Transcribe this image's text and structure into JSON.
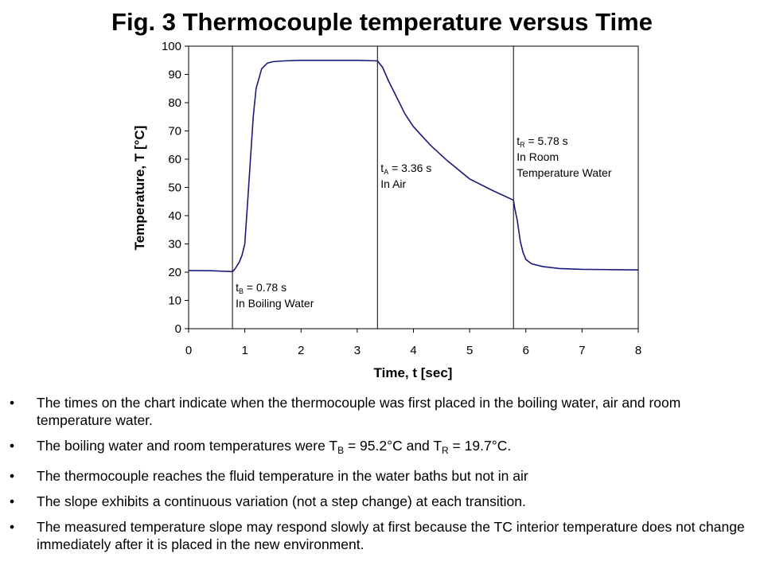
{
  "chart_data": {
    "type": "line",
    "title": "Fig. 3 Thermocouple temperature  versus Time",
    "xlabel": "Time, t [sec]",
    "ylabel": "Temperature, T [°C]",
    "xlim": [
      0,
      8
    ],
    "ylim": [
      0,
      100
    ],
    "xticks": [
      0,
      1,
      2,
      3,
      4,
      5,
      6,
      7,
      8
    ],
    "yticks": [
      0,
      10,
      20,
      30,
      40,
      50,
      60,
      70,
      80,
      90,
      100
    ],
    "grid": false,
    "legend": "none",
    "line_color": "#1a1a7a",
    "series": [
      {
        "x": [
          0,
          0.4,
          0.78,
          0.82,
          0.9,
          0.95,
          1.0,
          1.05,
          1.1,
          1.15,
          1.2,
          1.3,
          1.4,
          1.5,
          1.7,
          2.0,
          2.5,
          3.0,
          3.36,
          3.45,
          3.55,
          3.7,
          3.85,
          4.0,
          4.3,
          4.6,
          5.0,
          5.4,
          5.78,
          5.8,
          5.85,
          5.9,
          5.95,
          6.0,
          6.1,
          6.3,
          6.6,
          7.0,
          7.5,
          8.0
        ],
        "y": [
          20.6,
          20.5,
          20.2,
          21,
          23.5,
          26,
          30,
          45,
          60,
          75,
          85,
          92,
          94,
          94.5,
          94.8,
          95,
          95,
          95,
          94.8,
          92.5,
          88,
          82,
          76,
          71.5,
          65,
          59.5,
          53,
          49,
          45.5,
          43,
          38,
          31,
          27,
          24.5,
          23,
          22,
          21.3,
          21,
          20.9,
          20.8
        ]
      }
    ],
    "markers": [
      {
        "x": 0.78,
        "label1_main": "t",
        "label1_sub": "B",
        "label1_rest": " = 0.78 s",
        "label2": "In Boiling Water"
      },
      {
        "x": 3.36,
        "label1_main": "t",
        "label1_sub": "A",
        "label1_rest": " = 3.36 s",
        "label2": "In Air"
      },
      {
        "x": 5.78,
        "label1_main": "t",
        "label1_sub": "R",
        "label1_rest": " = 5.78 s",
        "label2": "In Room",
        "label3": "Temperature Water"
      }
    ]
  },
  "bullets": [
    {
      "text": "The times on the chart indicate when the thermocouple was first placed in the boiling water, air and room temperature water."
    },
    {
      "p1": "The boiling water and room temperatures were T",
      "s1": "B",
      "p2": " = 95.2°C and T",
      "s2": "R",
      "p3": " = 19.7°C."
    },
    {
      "text": "The thermocouple reaches the fluid temperature in the water baths but not in air"
    },
    {
      "text": "The slope exhibits a continuous variation (not a step change) at each transition."
    },
    {
      "text": "The measured temperature slope may respond slowly at first because the TC interior temperature does not change immediately after it is placed in the new environment."
    }
  ],
  "bullet_char": "•"
}
